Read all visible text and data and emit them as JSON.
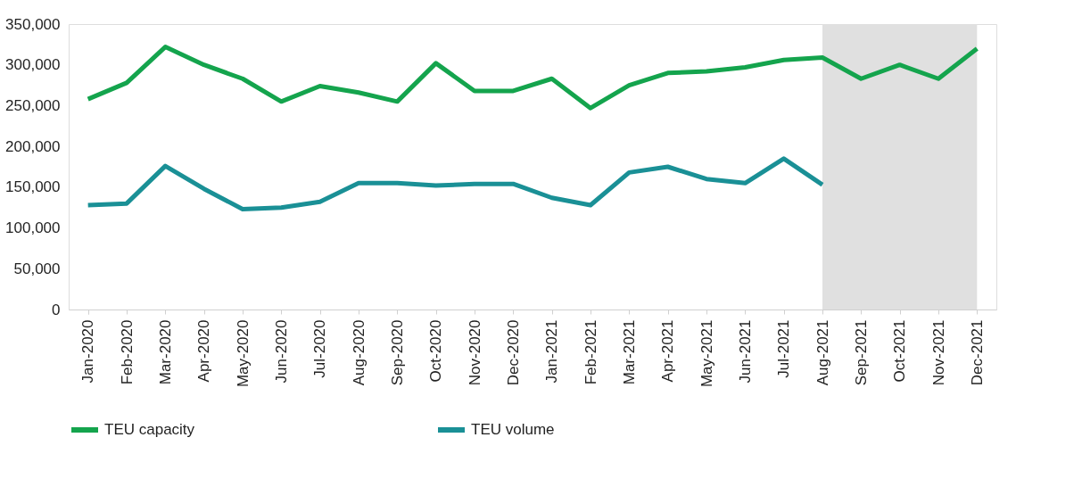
{
  "chart_data": {
    "type": "line",
    "categories": [
      "Jan-2020",
      "Feb-2020",
      "Mar-2020",
      "Apr-2020",
      "May-2020",
      "Jun-2020",
      "Jul-2020",
      "Aug-2020",
      "Sep-2020",
      "Oct-2020",
      "Nov-2020",
      "Dec-2020",
      "Jan-2021",
      "Feb-2021",
      "Mar-2021",
      "Apr-2021",
      "May-2021",
      "Jun-2021",
      "Jul-2021",
      "Aug-2021",
      "Sep-2021",
      "Oct-2021",
      "Nov-2021",
      "Dec-2021"
    ],
    "series": [
      {
        "name": "TEU capacity",
        "color": "#14a44d",
        "values": [
          258000,
          278000,
          322000,
          300000,
          283000,
          255000,
          274000,
          266000,
          255000,
          302000,
          268000,
          268000,
          283000,
          247000,
          275000,
          290000,
          292000,
          297000,
          306000,
          309000,
          283000,
          300000,
          283000,
          320000
        ]
      },
      {
        "name": "TEU volume",
        "color": "#1a9096",
        "values": [
          128000,
          130000,
          176000,
          148000,
          123000,
          125000,
          132000,
          155000,
          155000,
          152000,
          154000,
          154000,
          137000,
          128000,
          168000,
          175000,
          160000,
          155000,
          185000,
          153000,
          null,
          null,
          null,
          null
        ]
      }
    ],
    "ylim": [
      0,
      350000
    ],
    "yticks": [
      {
        "value": 0,
        "label": "0"
      },
      {
        "value": 50000,
        "label": "50,000"
      },
      {
        "value": 100000,
        "label": "100,000"
      },
      {
        "value": 150000,
        "label": "150,000"
      },
      {
        "value": 200000,
        "label": "200,000"
      },
      {
        "value": 250000,
        "label": "250,000"
      },
      {
        "value": 300000,
        "label": "300,000"
      },
      {
        "value": 350000,
        "label": "350,000"
      }
    ],
    "bands": [
      {
        "axis": "x",
        "from": "Aug-2021",
        "to": "Dec-2021",
        "color": "#e0e0e0"
      }
    ],
    "grid": false,
    "legend": "bottom",
    "line_style": "solid",
    "marker": "none"
  }
}
